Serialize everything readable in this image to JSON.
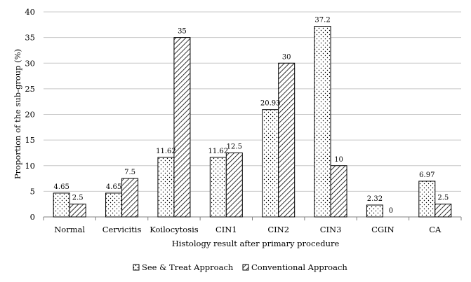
{
  "chart_data": {
    "type": "bar",
    "categories": [
      "Normal",
      "Cervicitis",
      "Koilocytosis",
      "CIN1",
      "CIN2",
      "CIN3",
      "CGIN",
      "CA"
    ],
    "series": [
      {
        "name": "See & Treat Approach",
        "values": [
          4.65,
          4.65,
          11.62,
          11.62,
          20.93,
          37.2,
          2.32,
          6.97
        ],
        "labels": [
          "4.65",
          "4.65",
          "11.62",
          "11.62",
          "20.93",
          "37.2",
          "2.32",
          "6.97"
        ],
        "pattern": "dots"
      },
      {
        "name": "Conventional Approach",
        "values": [
          2.5,
          7.5,
          35,
          12.5,
          30,
          10,
          0,
          2.5
        ],
        "labels": [
          "2.5",
          "7.5",
          "35",
          "12.5",
          "30",
          "10",
          "0",
          "2.5"
        ],
        "pattern": "diagonal-hatch"
      }
    ],
    "xlabel": "Histology result after primary procedure",
    "ylabel": "Proportion of the sub-group (%)",
    "ylim": [
      0,
      40
    ],
    "yticks": [
      "0",
      "5",
      "10",
      "15",
      "20",
      "25",
      "30",
      "35",
      "40"
    ],
    "grid": "horizontal",
    "legend_position": "bottom"
  },
  "colors": {
    "bar_fill": "#ffffff",
    "bar_stroke": "#000000",
    "gridline": "#c8c8c8",
    "axis": "#7f7f7f"
  }
}
